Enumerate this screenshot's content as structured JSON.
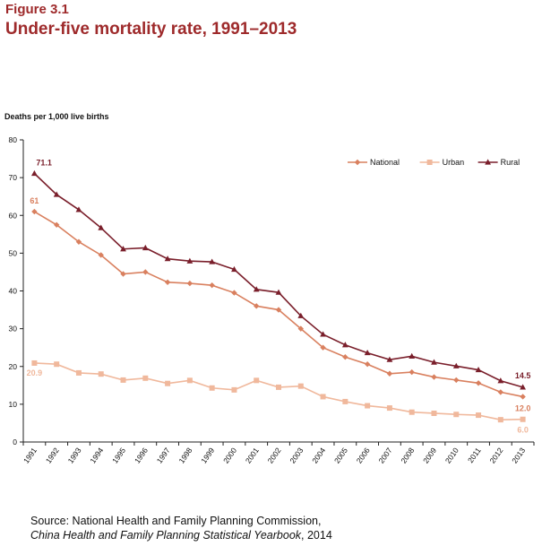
{
  "figure": {
    "label": "Figure 3.1",
    "title": "Under-five mortality rate, 1991–2013"
  },
  "source": {
    "line1": "Source: National Health and Family Planning Commission,",
    "line2_italic": "China Health and Family Planning Statistical Yearbook",
    "line2_rest": ", 2014"
  },
  "chart_data": {
    "type": "line",
    "ylabel": "Deaths per 1,000 live births",
    "xlabel": "",
    "ylim": [
      0,
      80
    ],
    "yticks": [
      0,
      10,
      20,
      30,
      40,
      50,
      60,
      70,
      80
    ],
    "grid": false,
    "legend": "top-right",
    "categories": [
      "1991",
      "1992",
      "1993",
      "1994",
      "1995",
      "1996",
      "1997",
      "1998",
      "1999",
      "2000",
      "2001",
      "2002",
      "2003",
      "2004",
      "2005",
      "2006",
      "2007",
      "2008",
      "2009",
      "2010",
      "2011",
      "2012",
      "2013"
    ],
    "series": [
      {
        "name": "National",
        "color": "#d9805f",
        "marker": "diamond",
        "values": [
          61.0,
          57.5,
          53.0,
          49.5,
          44.5,
          45.0,
          42.3,
          42.0,
          41.5,
          39.5,
          36.0,
          35.0,
          30.0,
          25.0,
          22.5,
          20.6,
          18.1,
          18.5,
          17.2,
          16.4,
          15.6,
          13.2,
          12.0
        ],
        "labels": [
          {
            "index": 0,
            "text": "61"
          },
          {
            "index": 22,
            "text": "12.0"
          }
        ]
      },
      {
        "name": "Urban",
        "color": "#f0b89c",
        "marker": "square",
        "values": [
          20.9,
          20.6,
          18.3,
          18.0,
          16.4,
          16.9,
          15.5,
          16.3,
          14.3,
          13.8,
          16.3,
          14.5,
          14.8,
          12.0,
          10.7,
          9.6,
          9.0,
          7.9,
          7.6,
          7.3,
          7.1,
          5.9,
          6.0
        ],
        "labels": [
          {
            "index": 0,
            "text": "20.9"
          },
          {
            "index": 22,
            "text": "6.0"
          }
        ]
      },
      {
        "name": "Rural",
        "color": "#7a1f2b",
        "marker": "triangle",
        "values": [
          71.1,
          65.5,
          61.5,
          56.7,
          51.1,
          51.4,
          48.5,
          47.9,
          47.7,
          45.7,
          40.4,
          39.6,
          33.4,
          28.5,
          25.7,
          23.6,
          21.8,
          22.7,
          21.1,
          20.1,
          19.1,
          16.2,
          14.5
        ],
        "labels": [
          {
            "index": 0,
            "text": "71.1"
          },
          {
            "index": 22,
            "text": "14.5"
          }
        ]
      }
    ]
  }
}
